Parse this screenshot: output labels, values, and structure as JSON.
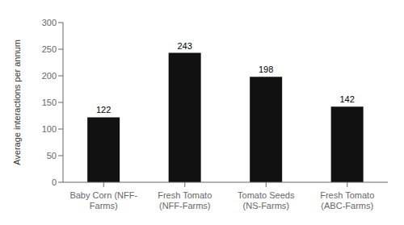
{
  "chart_data": {
    "type": "bar",
    "categories": [
      "Baby Corn (NFF-\nFarms)",
      "Fresh Tomato\n(NFF-Farms)",
      "Tomato Seeds\n(NS-Farms)",
      "Fresh Tomato\n(ABC-Farms)"
    ],
    "values": [
      122,
      243,
      198,
      142
    ],
    "color": "#111111",
    "ylabel": "Average interactions per annum",
    "ylim": [
      0,
      300
    ],
    "yticks": [
      0,
      50,
      100,
      150,
      200,
      250,
      300
    ],
    "grid": false,
    "data_labels": true
  }
}
